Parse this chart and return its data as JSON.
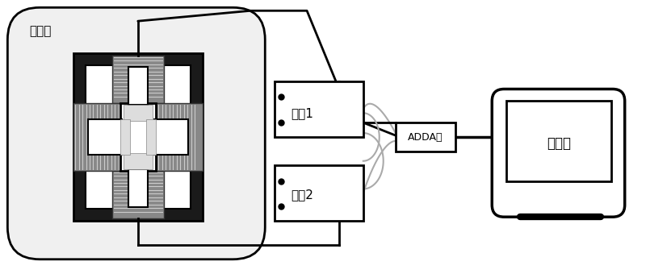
{
  "bg_color": "#e8e8e8",
  "bg_inner_color": "#ffffff",
  "text_color": "#000000",
  "label_dianci": "电磁铁",
  "label_power1": "电源1",
  "label_power2": "电源2",
  "label_adda": "ADDA卡",
  "label_computer": "计算机",
  "font_size_label": 11,
  "font_size_small": 9,
  "line_color": "#000000",
  "coil_color": "#555555",
  "connector_color": "#999999"
}
